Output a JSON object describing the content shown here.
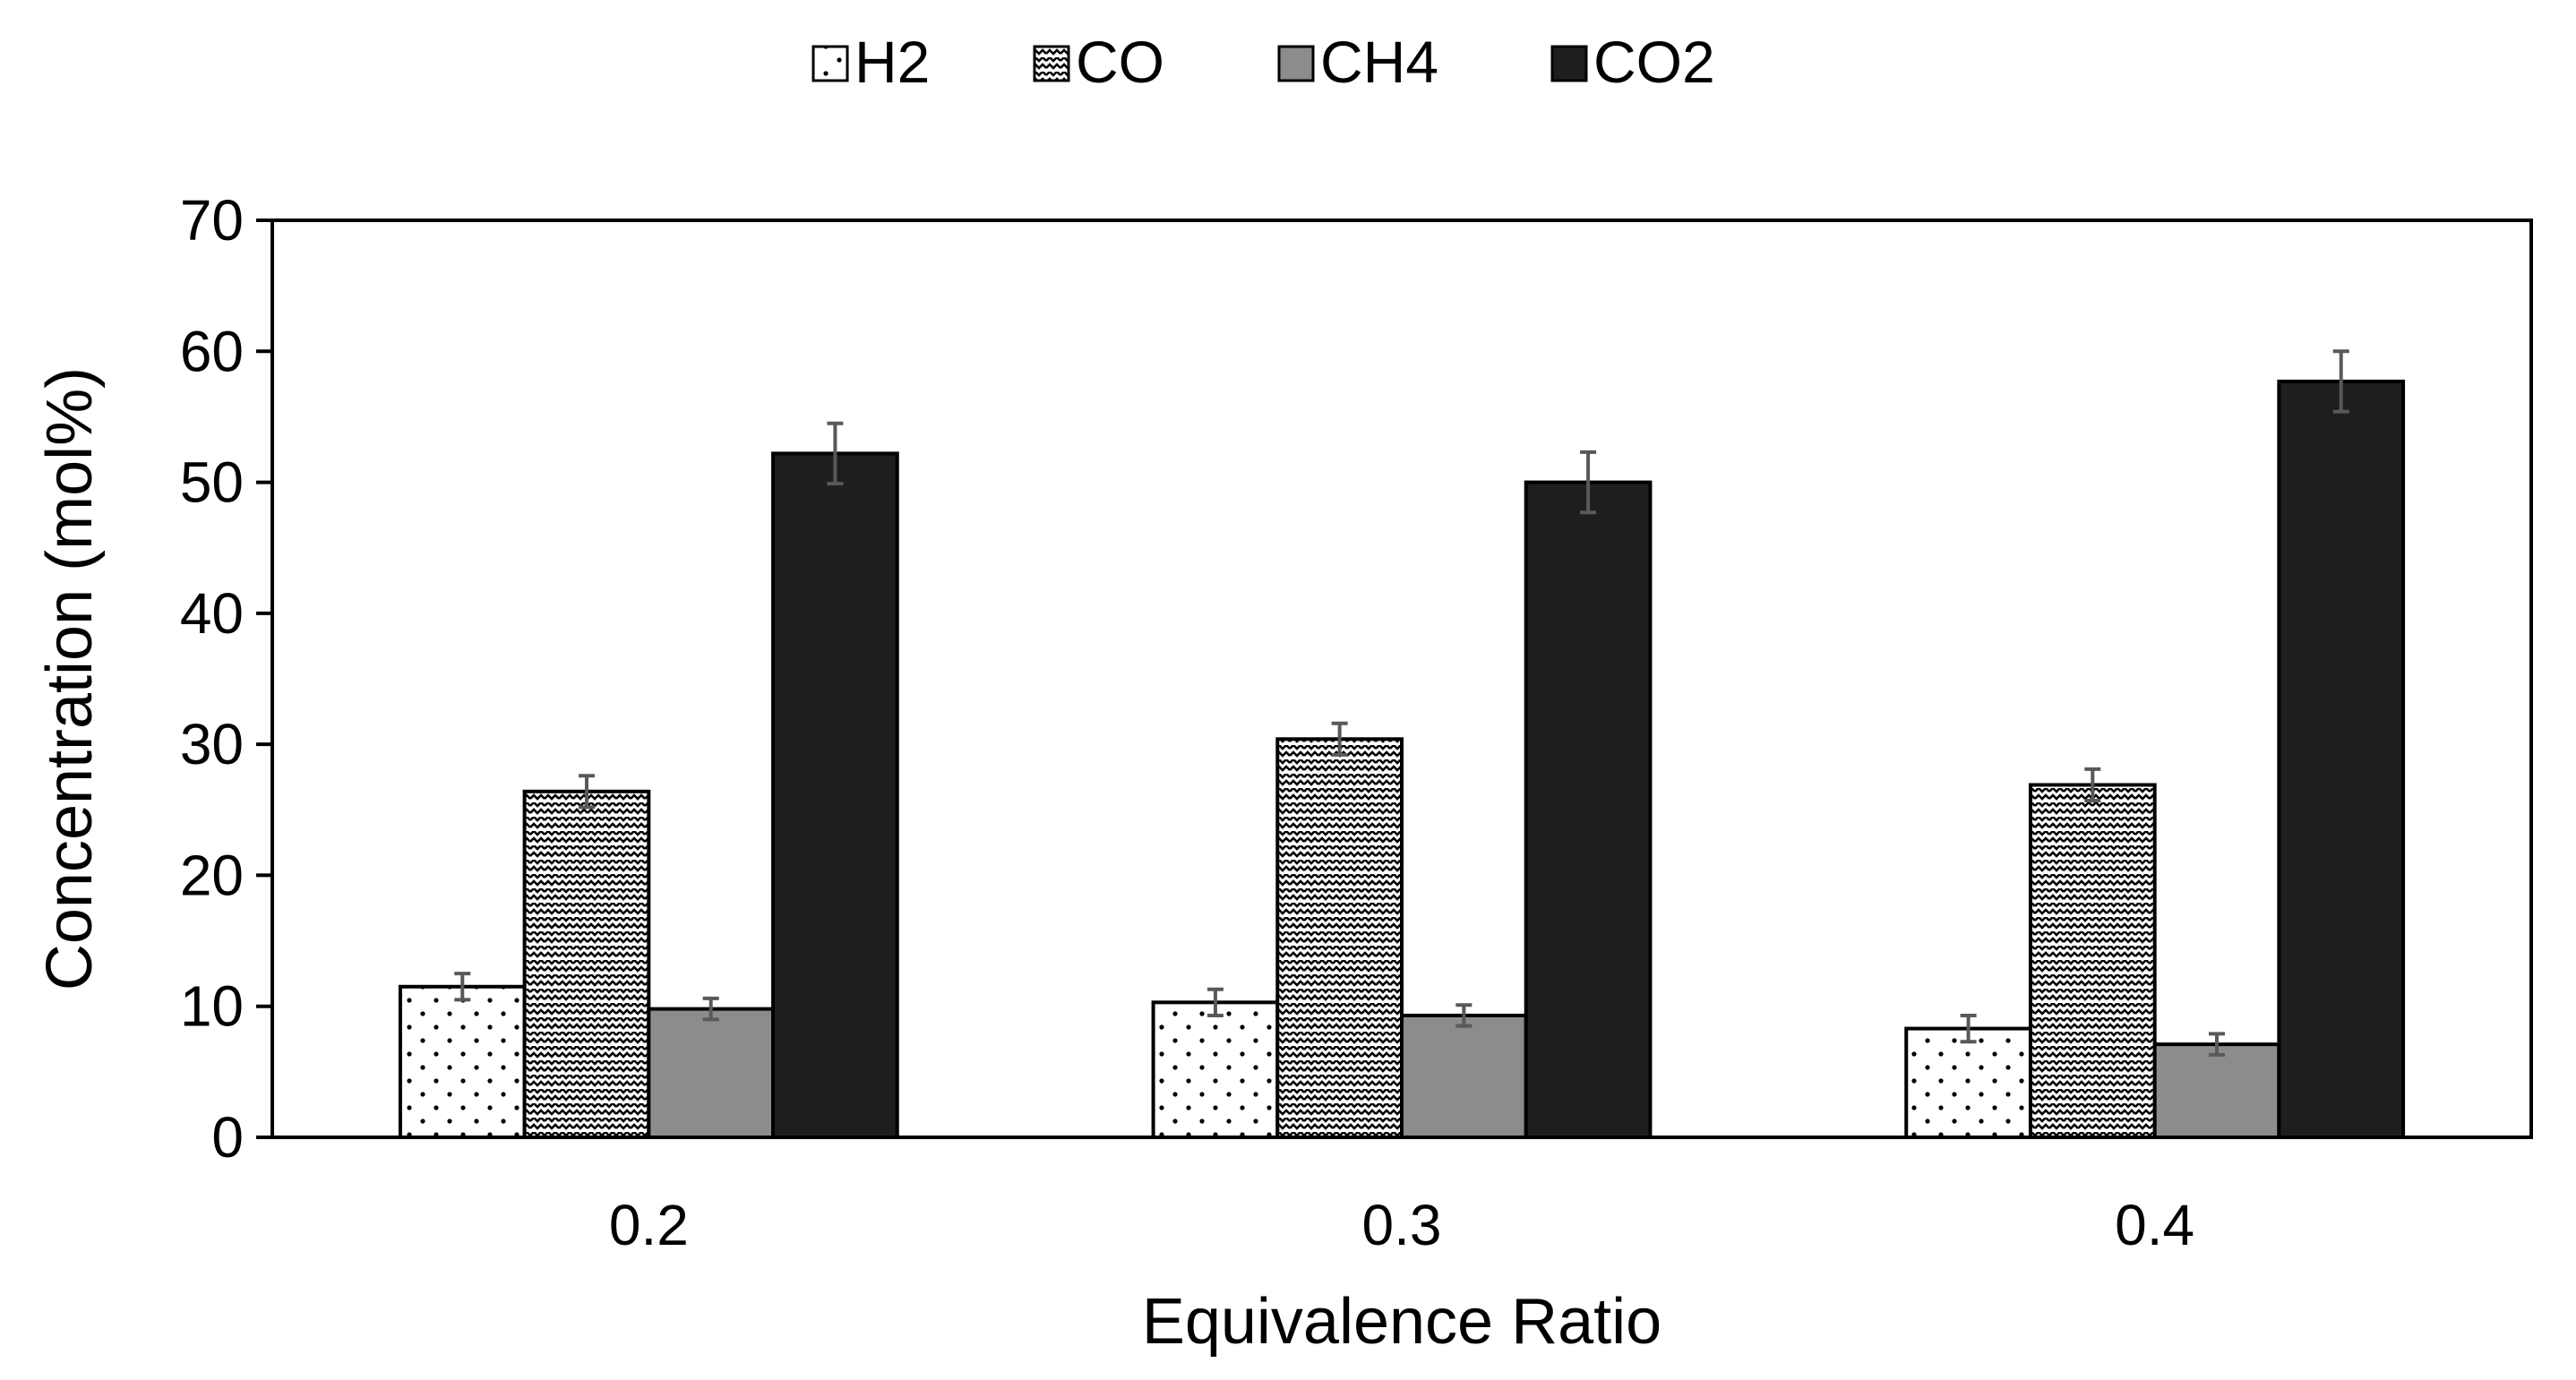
{
  "chart_data": {
    "type": "bar",
    "title": "",
    "xlabel": "Equivalence Ratio",
    "ylabel": "Concentration (mol%)",
    "categories": [
      "0.2",
      "0.3",
      "0.4"
    ],
    "ylim": [
      0,
      70
    ],
    "yticks": [
      "0",
      "10",
      "20",
      "30",
      "40",
      "50",
      "60",
      "70"
    ],
    "grid": false,
    "legend_position": "top-center",
    "series": [
      {
        "name": "H2",
        "values": [
          11.5,
          10.3,
          8.3
        ],
        "errors": [
          1.0,
          1.0,
          1.0
        ],
        "fill": "dots"
      },
      {
        "name": "CO",
        "values": [
          26.4,
          30.4,
          26.9
        ],
        "errors": [
          1.2,
          1.2,
          1.2
        ],
        "fill": "zigzag"
      },
      {
        "name": "CH4",
        "values": [
          9.8,
          9.3,
          7.1
        ],
        "errors": [
          0.8,
          0.8,
          0.8
        ],
        "fill": "#8c8c8c"
      },
      {
        "name": "CO2",
        "values": [
          52.2,
          50.0,
          57.7
        ],
        "errors": [
          2.3,
          2.3,
          2.3
        ],
        "fill": "#1e1e1e"
      }
    ],
    "colors": {
      "axis": "#000000",
      "error_bar": "#595959",
      "bar_outline": "#000000"
    }
  }
}
